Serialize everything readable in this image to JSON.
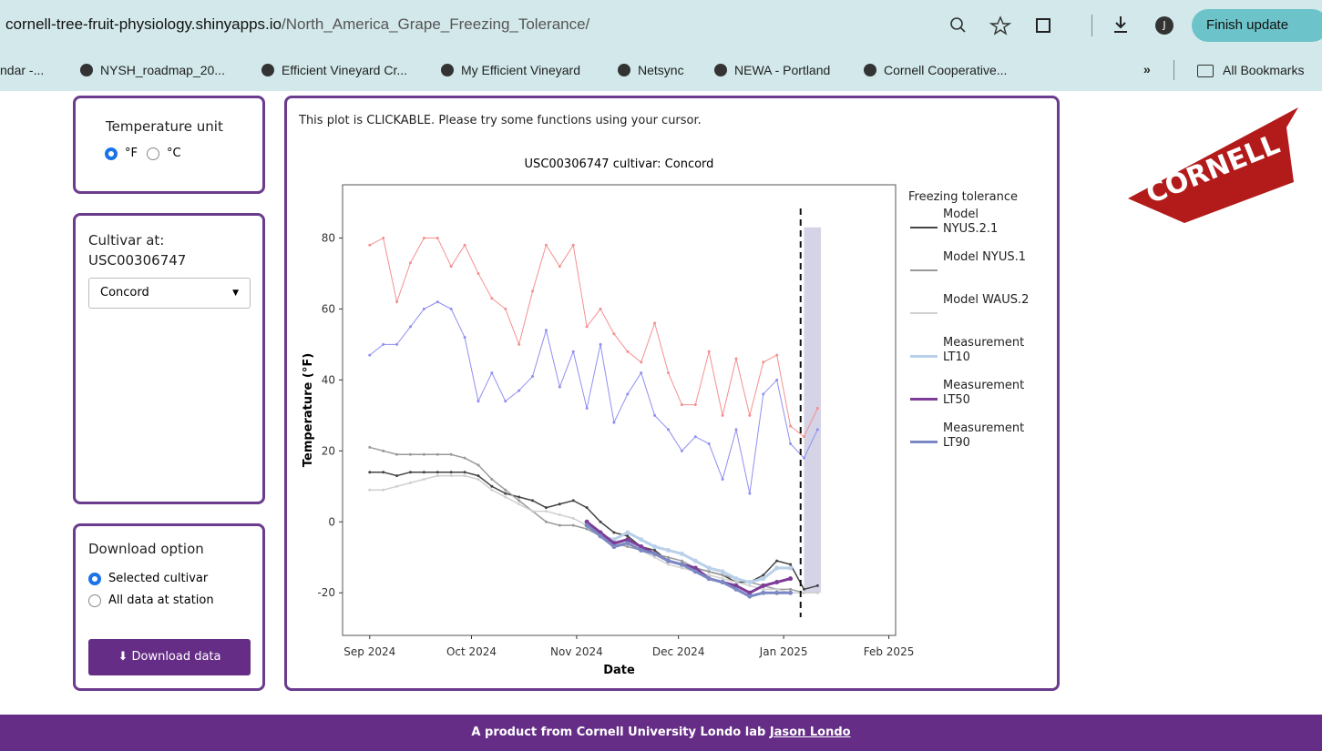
{
  "browser": {
    "url_host": "cornell-tree-fruit-physiology.shinyapps.io",
    "url_path": "/North_America_Grape_Freezing_Tolerance/",
    "profile": "J",
    "update": "Finish update",
    "bookmarks": [
      "ndar -...",
      "NYSH_roadmap_20...",
      "Efficient Vineyard Cr...",
      "My Efficient Vineyard",
      "Netsync",
      "NEWA - Portland",
      "Cornell Cooperative..."
    ],
    "more": "»",
    "all_bookmarks": "All Bookmarks"
  },
  "sidebar": {
    "unit_title": "Temperature unit",
    "unit_options": [
      "°F",
      "°C"
    ],
    "cultivar_label": "Cultivar at:",
    "station": "USC00306747",
    "cultivar": "Concord",
    "download_title": "Download option",
    "download_options": [
      "Selected cultivar",
      "All data at station"
    ],
    "download_button": "Download data"
  },
  "logo": "CORNELL",
  "note": "This plot is CLICKABLE. Please try some functions using your cursor.",
  "chart_data": {
    "type": "line",
    "title": "USC00306747 cultivar: Concord",
    "x_label": "Date",
    "y_label": "Temperature (°F)",
    "legend_title": "Freezing tolerance",
    "grid": false,
    "x": [
      "2024-09-01",
      "2024-09-05",
      "2024-09-09",
      "2024-09-13",
      "2024-09-17",
      "2024-09-21",
      "2024-09-25",
      "2024-09-29",
      "2024-10-03",
      "2024-10-07",
      "2024-10-11",
      "2024-10-15",
      "2024-10-19",
      "2024-10-23",
      "2024-10-27",
      "2024-10-31",
      "2024-11-04",
      "2024-11-08",
      "2024-11-12",
      "2024-11-16",
      "2024-11-20",
      "2024-11-24",
      "2024-11-28",
      "2024-12-02",
      "2024-12-06",
      "2024-12-10",
      "2024-12-14",
      "2024-12-18",
      "2024-12-22",
      "2024-12-26",
      "2024-12-30",
      "2025-01-03",
      "2025-01-07",
      "2025-01-11"
    ],
    "xlim": [
      "2024-08-24",
      "2025-02-03"
    ],
    "xticks": [
      {
        "value": "2024-09-01",
        "label": "Sep 2024"
      },
      {
        "value": "2024-10-01",
        "label": "Oct 2024"
      },
      {
        "value": "2024-11-01",
        "label": "Nov 2024"
      },
      {
        "value": "2024-12-01",
        "label": "Dec 2024"
      },
      {
        "value": "2025-01-01",
        "label": "Jan 2025"
      },
      {
        "value": "2025-02-01",
        "label": "Feb 2025"
      }
    ],
    "ylim": [
      -32,
      95
    ],
    "yticks": [
      -20,
      0,
      20,
      40,
      60,
      80
    ],
    "series": [
      {
        "color": "#f4908f",
        "width": 1,
        "values": [
          78,
          80,
          62,
          73,
          80,
          80,
          72,
          78,
          70,
          63,
          60,
          50,
          65,
          78,
          72,
          78,
          55,
          60,
          53,
          48,
          45,
          56,
          42,
          33,
          33,
          48,
          30,
          46,
          30,
          45,
          47,
          27,
          24,
          32
        ]
      },
      {
        "color": "#8f8ff2",
        "width": 1,
        "values": [
          47,
          50,
          50,
          55,
          60,
          62,
          60,
          52,
          34,
          42,
          34,
          37,
          41,
          54,
          38,
          48,
          32,
          50,
          28,
          36,
          42,
          30,
          26,
          20,
          24,
          22,
          12,
          26,
          8,
          36,
          40,
          22,
          18,
          26
        ]
      },
      {
        "name": "Model NYUS.2.1",
        "color": "#444444",
        "width": 1.5,
        "values": [
          14,
          14,
          13,
          14,
          14,
          14,
          14,
          14,
          13,
          10,
          8,
          7,
          6,
          4,
          5,
          6,
          4,
          0,
          -3,
          -4,
          -7,
          -8,
          -11,
          -12,
          -13,
          -14,
          -15,
          -17,
          -17,
          -15,
          -11,
          -12,
          -19,
          -18
        ]
      },
      {
        "name": "Model NYUS.1",
        "color": "#9a9a9a",
        "width": 1.5,
        "values": [
          21,
          20,
          19,
          19,
          19,
          19,
          19,
          18,
          16,
          12,
          9,
          6,
          3,
          0,
          -1,
          -1,
          -2,
          -4,
          -6,
          -7,
          -8,
          -9,
          -10,
          -11,
          -13,
          -14,
          -15,
          -16,
          -17,
          -18,
          -19,
          -19,
          -20,
          -20
        ]
      },
      {
        "name": "Model WAUS.2",
        "color": "#d0d0d0",
        "width": 1.5,
        "values": [
          9,
          9,
          10,
          11,
          12,
          13,
          13,
          13,
          12,
          9,
          7,
          5,
          3,
          3,
          2,
          1,
          -1,
          -3,
          -6,
          -6,
          -8,
          -10,
          -12,
          -13,
          -14,
          -15,
          -16,
          -17,
          -18,
          -19,
          -19,
          -20,
          -20,
          -20
        ]
      },
      {
        "name": "Measurement LT10",
        "color": "#b8d0ea",
        "width": 3,
        "values": [
          null,
          null,
          null,
          null,
          null,
          null,
          null,
          null,
          null,
          null,
          null,
          null,
          null,
          null,
          null,
          null,
          -1,
          -4,
          -5,
          -3,
          -5,
          -7,
          -8,
          -9,
          -11,
          -13,
          -14,
          -16,
          -17,
          -16,
          -13,
          -13,
          null,
          null
        ]
      },
      {
        "name": "Measurement LT50",
        "color": "#7d3c98",
        "width": 3,
        "values": [
          null,
          null,
          null,
          null,
          null,
          null,
          null,
          null,
          null,
          null,
          null,
          null,
          null,
          null,
          null,
          null,
          0,
          -3,
          -6,
          -5,
          -7,
          -9,
          -11,
          -12,
          -13,
          -16,
          -17,
          -18,
          -20,
          -18,
          -17,
          -16,
          null,
          null
        ]
      },
      {
        "name": "Measurement LT90",
        "color": "#7a88c4",
        "width": 3,
        "values": [
          null,
          null,
          null,
          null,
          null,
          null,
          null,
          null,
          null,
          null,
          null,
          null,
          null,
          null,
          null,
          null,
          -1,
          -4,
          -7,
          -6,
          -8,
          -9,
          -11,
          -12,
          -14,
          -16,
          -17,
          -19,
          -21,
          -20,
          -20,
          -20,
          null,
          null
        ]
      }
    ],
    "vline": "2025-01-06",
    "band": {
      "x": [
        "2025-01-07",
        "2025-01-12"
      ],
      "y": [
        -20,
        83
      ],
      "color": "#d4d4e6"
    }
  },
  "footer": {
    "text": "A product from Cornell University Londo lab",
    "link": "Jason Londo"
  }
}
